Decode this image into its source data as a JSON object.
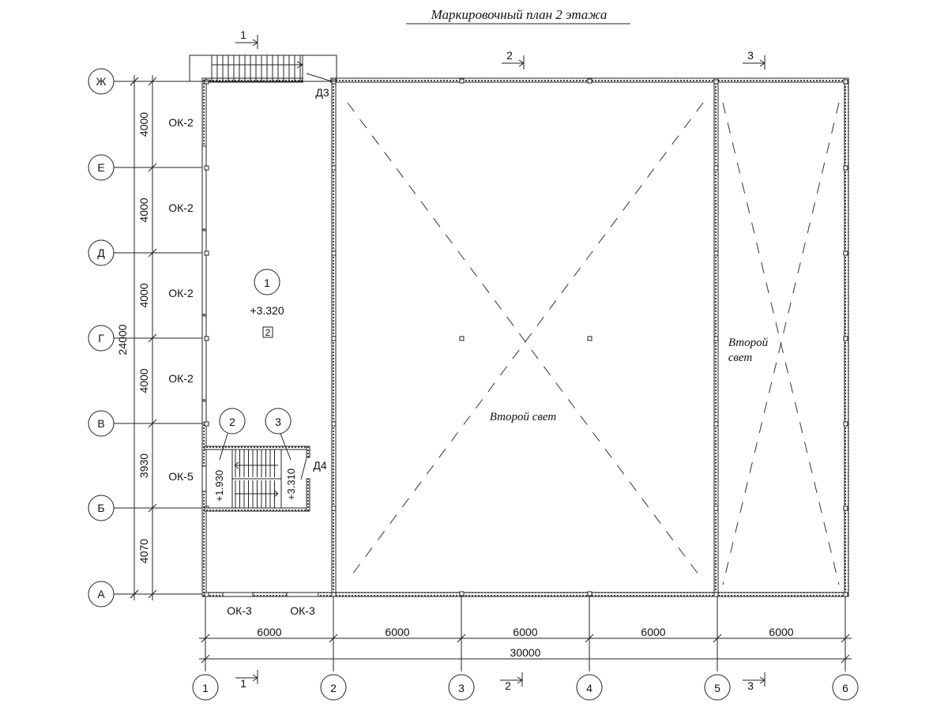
{
  "title": "Маркировочный план 2 этажа",
  "axes_letters": [
    "Ж",
    "Е",
    "Д",
    "Г",
    "В",
    "Б",
    "А"
  ],
  "axes_numbers": [
    "1",
    "2",
    "3",
    "4",
    "5",
    "6"
  ],
  "vertical_dims": [
    "4000",
    "4000",
    "4000",
    "4000",
    "3930",
    "4070"
  ],
  "vertical_total": "24000",
  "horizontal_dims": [
    "6000",
    "6000",
    "6000",
    "6000",
    "6000"
  ],
  "horizontal_total": "30000",
  "windows_left": [
    "ОК-2",
    "ОК-2",
    "ОК-2",
    "ОК-2",
    "ОК-5"
  ],
  "windows_bottom": [
    "ОК-3",
    "ОК-3"
  ],
  "doors": {
    "d3": "Д3",
    "d4": "Д4"
  },
  "sections": [
    "1",
    "2",
    "3"
  ],
  "rooms": [
    {
      "number": "1",
      "elevation": "+3.320",
      "tag": "2"
    },
    {
      "number": "2",
      "elevation": "+1.930"
    },
    {
      "number": "3",
      "elevation": "+3.310"
    }
  ],
  "second_light": {
    "main": "Второй свет",
    "side_line1": "Второй",
    "side_line2": "свет"
  }
}
